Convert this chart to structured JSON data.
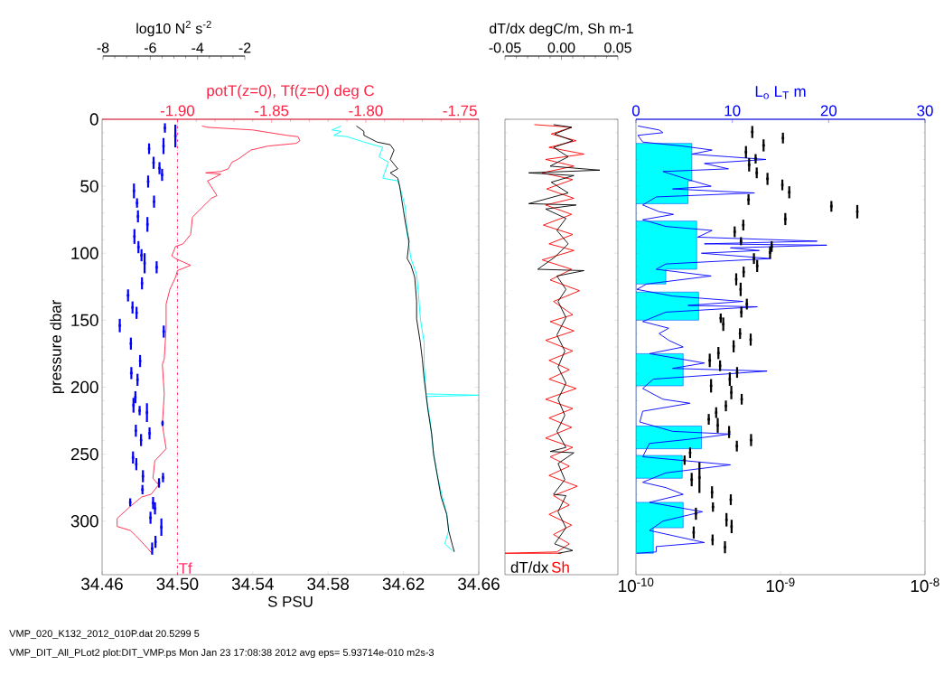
{
  "chart_data": [
    {
      "type": "line",
      "xlabel": "S PSU",
      "ylabel": "pressure dbar",
      "x2label": "potT(z=0), Tf(z=0) deg C",
      "xlim": [
        34.46,
        34.66
      ],
      "xticks": [
        34.46,
        {
          "value": 34.5,
          "label": "34.50"
        },
        34.54,
        34.58,
        34.62,
        34.66
      ],
      "x2lim": [
        -1.94,
        -1.74
      ],
      "x2ticks": [
        {
          "value": -1.9,
          "label": "-1.90"
        },
        -1.85,
        {
          "value": -1.8,
          "label": "-1.80"
        },
        -1.75
      ],
      "ylim": [
        340,
        0
      ],
      "yticks": [
        0,
        50,
        100,
        150,
        200,
        250,
        300
      ],
      "series": [
        {
          "color": "#000000",
          "x": [
            34.595,
            34.599,
            34.599,
            34.606,
            34.613,
            34.615,
            34.613,
            34.617,
            34.613,
            34.617,
            34.618,
            34.619,
            34.62,
            34.621,
            34.623,
            34.622,
            34.624,
            34.626,
            34.627,
            34.627,
            34.629,
            34.63,
            34.631,
            34.632,
            34.633,
            34.635,
            34.636,
            34.638,
            34.64,
            34.643,
            34.644,
            34.646,
            34.647
          ],
          "values": [
            5,
            9,
            12,
            17,
            19,
            23,
            30,
            37,
            40,
            44,
            50,
            59,
            68,
            77,
            91,
            104,
            109,
            118,
            136,
            149,
            167,
            179,
            194,
            205,
            217,
            235,
            250,
            266,
            282,
            295,
            307,
            318,
            323
          ]
        },
        {
          "color": "#00ffff",
          "x": [
            34.587,
            34.582,
            34.587,
            34.583,
            34.59,
            34.599,
            34.609,
            34.607,
            34.612,
            34.609,
            34.617,
            34.619,
            34.621,
            34.622,
            34.624,
            34.627,
            34.628,
            34.629,
            34.631,
            34.631,
            34.632,
            34.66,
            34.632,
            34.634,
            34.636,
            34.638,
            34.641,
            34.643,
            34.644,
            34.642,
            34.646
          ],
          "values": [
            5,
            8,
            9,
            12,
            13,
            17,
            21,
            28,
            32,
            44,
            46,
            55,
            66,
            86,
            104,
            116,
            131,
            149,
            167,
            183,
            205,
            206,
            207,
            223,
            250,
            266,
            284,
            295,
            307,
            317,
            322
          ]
        },
        {
          "color": "#ff2244",
          "axis": "x2",
          "x": [
            -1.887,
            -1.884,
            -1.86,
            -1.842,
            -1.836,
            -1.835,
            -1.837,
            -1.852,
            -1.861,
            -1.868,
            -1.871,
            -1.873,
            -1.877,
            -1.885,
            -1.877,
            -1.881,
            -1.884,
            -1.879,
            -1.882,
            -1.887,
            -1.892,
            -1.893,
            -1.897,
            -1.901,
            -1.903,
            -1.901,
            -1.893,
            -1.9,
            -1.901,
            -1.904,
            -1.906,
            -1.906,
            -1.907,
            -1.908,
            -1.907,
            -1.908,
            -1.906,
            -1.912,
            -1.913,
            -1.91,
            -1.914,
            -1.919,
            -1.925,
            -1.932,
            -1.932,
            -1.925,
            -1.922,
            -1.916,
            -1.913
          ],
          "values": [
            5,
            6,
            8,
            12,
            13,
            16,
            18,
            20,
            23,
            30,
            32,
            37,
            39,
            40,
            41,
            44,
            46,
            57,
            59,
            66,
            73,
            86,
            93,
            95,
            102,
            104,
            109,
            113,
            118,
            127,
            138,
            156,
            179,
            183,
            205,
            228,
            246,
            255,
            268,
            273,
            280,
            282,
            289,
            298,
            304,
            307,
            311,
            320,
            325
          ]
        }
      ],
      "ref_lines": [
        {
          "axis": "x2",
          "value": -1.9,
          "label": "Tf",
          "color": "#ff3366",
          "line_style": "dashdot"
        }
      ],
      "annotations": [
        "VMP_020_K132_2012_010P.dat  20.5299  5",
        "VMP_DIT_All_PLot2    plot:DIT_VMP.ps Mon Jan 23 17:08:38 2012  avg eps=  5.93714e-010 m2s-3"
      ]
    },
    {
      "type": "scatter",
      "xlabel": "log10 N$^{2}$ s$^{-2}$",
      "xlim": [
        -8,
        -2
      ],
      "xticks": [
        -8,
        -6,
        -4,
        -2
      ],
      "ylim": [
        340,
        0
      ],
      "yticks": [
        0,
        50,
        100,
        150,
        200,
        250,
        300
      ],
      "tick_labels": "x",
      "marker": "square",
      "series": [
        {
          "color": "#0000ff",
          "x": [
            -5.38,
            -4.94,
            -5.44,
            -6.05,
            -5.86,
            -5.5,
            -6.09,
            -5.61,
            -6.69,
            -6.56,
            -5.84,
            -6.12,
            -6.52,
            -6.67,
            -6.5,
            -6.37,
            -6.24,
            -5.73,
            -6.35,
            -6.94,
            -6.75,
            -6.58,
            -7.29,
            -5.43,
            -6.82,
            -6.43,
            -6.8,
            -6.54,
            -6.63,
            -6.71,
            -6.45,
            -6.14,
            -5.48,
            -6.61,
            -6.03,
            -6.39,
            -6.73,
            -6.59,
            -6.31,
            -5.46,
            -5.63,
            -6.33,
            -6.85,
            -5.88,
            -5.8,
            -5.99,
            -5.53,
            -5.78,
            -5.92
          ],
          "values": [
            6.5,
            12.5,
            20,
            22,
            32.5,
            41.5,
            46.5,
            36.5,
            53.5,
            62.5,
            61.5,
            78.5,
            72.5,
            87.5,
            95.5,
            101.5,
            107.5,
            110.5,
            122.5,
            131.5,
            140.5,
            144.5,
            154,
            158.5,
            167.5,
            180.5,
            189.5,
            194.5,
            207.5,
            213.5,
            217.5,
            219,
            227,
            232.5,
            234.5,
            239.5,
            252.5,
            257.5,
            266.5,
            267.5,
            271.5,
            276.5,
            286,
            286.5,
            290.5,
            297.5,
            304.5,
            315.5,
            320.5
          ],
          "errors": [
            [
              3,
              10
            ],
            [
              4,
              21
            ],
            [
              14,
              26
            ],
            [
              18,
              26
            ],
            [
              28,
              37
            ],
            [
              37,
              46
            ],
            [
              42,
              51
            ],
            [
              32,
              41
            ],
            [
              48,
              59
            ],
            [
              59,
              66
            ],
            [
              57,
              66
            ],
            [
              73,
              84
            ],
            [
              68,
              77
            ],
            [
              82,
              93
            ],
            [
              91,
              100
            ],
            [
              97,
              106
            ],
            [
              100,
              115
            ],
            [
              106,
              115
            ],
            [
              118,
              127
            ],
            [
              127,
              136
            ],
            [
              136,
              145
            ],
            [
              140,
              149
            ],
            [
              149,
              159
            ],
            [
              154,
              163
            ],
            [
              163,
              172
            ],
            [
              176,
              185
            ],
            [
              185,
              194
            ],
            [
              190,
              199
            ],
            [
              203,
              212
            ],
            [
              208,
              219
            ],
            [
              214,
              221
            ],
            [
              212,
              226
            ],
            [
              225,
              229
            ],
            [
              228,
              237
            ],
            [
              230,
              239
            ],
            [
              235,
              244
            ],
            [
              248,
              257
            ],
            [
              253,
              262
            ],
            [
              262,
              271
            ],
            [
              264,
              271
            ],
            [
              268,
              275
            ],
            [
              273,
              280
            ],
            [
              283,
              289
            ],
            [
              282,
              291
            ],
            [
              286,
              295
            ],
            [
              293,
              302
            ],
            [
              298,
              311
            ],
            [
              311,
              320
            ],
            [
              316,
              325
            ]
          ]
        }
      ]
    },
    {
      "type": "line",
      "xlabel": "dT/dx degC/m, Sh m-1",
      "xlim": [
        -0.05,
        0.05
      ],
      "xticks": [
        -0.05,
        {
          "value": 0,
          "label": "0.00"
        },
        0.05
      ],
      "ylim": [
        340,
        0
      ],
      "yticks": [
        0,
        50,
        100,
        150,
        200,
        250,
        300
      ],
      "tick_labels": "x",
      "series": [
        {
          "name": "dT/dx",
          "color": "#000000",
          "x": [
            -0.007,
            0.009,
            -0.006,
            0.01,
            -0.007,
            0.006,
            -0.01,
            0.034,
            -0.029,
            0.011,
            -0.009,
            0.006,
            -0.029,
            0.013,
            -0.014,
            0.004,
            -0.004,
            0.006,
            -0.006,
            -0.021,
            0.02,
            -0.004,
            0.004,
            -0.003,
            0.004,
            -0.004,
            0.003,
            -0.003,
            0.004,
            -0.003,
            0.003,
            -0.004,
            0.004,
            -0.01,
            0.011,
            -0.003,
            0.003,
            -0.007,
            0.004,
            -0.003,
            0.004,
            -0.006,
            0.01,
            -0.003
          ],
          "values": [
            4,
            6,
            11,
            16,
            21,
            28,
            35,
            38,
            40,
            42,
            47,
            55,
            63,
            64,
            67,
            74,
            83,
            93,
            103,
            112,
            113,
            117,
            127,
            136,
            148,
            161,
            173,
            185,
            197,
            209,
            221,
            233,
            245,
            248,
            249,
            257,
            269,
            280,
            281,
            293,
            305,
            317,
            322,
            324
          ]
        },
        {
          "name": "Sh",
          "color": "#ff0000",
          "x": [
            -0.024,
            0.009,
            -0.009,
            0.013,
            -0.011,
            0.02,
            -0.014,
            0.011,
            -0.017,
            0.01,
            -0.013,
            0.011,
            -0.014,
            0.009,
            -0.016,
            0.01,
            -0.011,
            0.011,
            -0.017,
            0.009,
            -0.01,
            0.016,
            -0.007,
            0.01,
            -0.01,
            0.011,
            -0.014,
            0.01,
            -0.011,
            0.007,
            -0.011,
            0.013,
            -0.014,
            0.01,
            -0.011,
            0.009,
            -0.014,
            0.01,
            -0.01,
            0.007,
            -0.011,
            0.014,
            -0.007,
            0.007,
            -0.011,
            0.009,
            -0.007,
            0.007,
            -0.004,
            -0.05,
            0.0
          ],
          "values": [
            4,
            6,
            11,
            16,
            21,
            26,
            30,
            35,
            40,
            45,
            52,
            59,
            64,
            71,
            79,
            86,
            93,
            98,
            105,
            112,
            120,
            128,
            136,
            146,
            151,
            158,
            165,
            173,
            180,
            187,
            194,
            201,
            209,
            216,
            223,
            230,
            238,
            245,
            252,
            259,
            266,
            274,
            281,
            288,
            295,
            303,
            310,
            317,
            323,
            324,
            324
          ]
        }
      ]
    },
    {
      "type": "line",
      "x2label": "L$_{o}$  L$_{T}$ m",
      "log": "x",
      "xlim": [
        1e-10,
        1e-08
      ],
      "xticks": [
        {
          "value": 1e-10,
          "label": "10$^{-10}$"
        },
        {
          "value": 1e-09,
          "label": "10$^{-9}$"
        },
        {
          "value": 1e-08,
          "label": "10$^{-8}$"
        }
      ],
      "x2lim": [
        0,
        30
      ],
      "x2ticks": [
        0,
        10,
        20,
        30
      ],
      "ylim": [
        340,
        0
      ],
      "yticks": [
        0,
        50,
        100,
        150,
        200,
        250,
        300
      ],
      "tick_labels": "x",
      "series": [
        {
          "type": "scatter",
          "marker": "square",
          "color": "#000000",
          "x": [
            6.38e-10,
            1.04e-09,
            7.64e-10,
            5.77e-10,
            6.73e-10,
            6.07e-10,
            6.85e-10,
            8.13e-10,
            1.03e-09,
            1.15e-09,
            6.01e-10,
            2.25e-09,
            3.4e-09,
            1.08e-09,
            5.53e-10,
            4.82e-10,
            5.33e-10,
            8.69e-10,
            8.47e-10,
            6.55e-10,
            6.9e-10,
            4.94e-10,
            5.56e-10,
            5.3e-10,
            5.85e-10,
            5.36e-10,
            3.86e-10,
            4.02e-10,
            5.25e-10,
            6.22e-10,
            4.74e-10,
            3.72e-10,
            3.24e-10,
            3.82e-10,
            5.01e-10,
            3.31e-10,
            4.46e-10,
            4.57e-10,
            5.39e-10,
            4.19e-10,
            3.59e-10,
            3.19e-10,
            3.68e-10,
            4.41e-10,
            6.26e-10,
            4.99e-10,
            2.37e-10,
            2.17e-10,
            2.75e-10,
            2.43e-10,
            3.36e-10,
            4.53e-10,
            3.41e-10,
            2.6e-10,
            4.23e-10,
            4.59e-10,
            2.51e-10,
            3.39e-10,
            4.13e-10
          ],
          "values": [
            9.5,
            14,
            19.5,
            24.5,
            29.5,
            34,
            40,
            44.5,
            49,
            54.5,
            60,
            65,
            69,
            74.5,
            79,
            84,
            91,
            95,
            99.5,
            104,
            109.5,
            119.5,
            114,
            127,
            138,
            144,
            148.5,
            153,
            160,
            164.5,
            169.5,
            174.5,
            180,
            184,
            189,
            199,
            194,
            204,
            209,
            214,
            219,
            224,
            228.5,
            233.5,
            239.5,
            244,
            249,
            254.5,
            267.5,
            269,
            278.5,
            284,
            289.5,
            294.5,
            299,
            304,
            308.5,
            314,
            319.5
          ],
          "errors": [
            [
              5,
              14
            ],
            [
              10,
              18
            ],
            [
              15,
              24
            ],
            [
              20,
              29
            ],
            [
              26,
              33
            ],
            [
              29,
              39
            ],
            [
              36,
              44
            ],
            [
              40,
              49
            ],
            [
              45,
              53
            ],
            [
              50,
              59
            ],
            [
              56,
              64
            ],
            [
              61,
              69
            ],
            [
              64,
              74
            ],
            [
              70,
              79
            ],
            [
              75,
              83
            ],
            [
              80,
              88
            ],
            [
              88,
              94
            ],
            [
              91,
              99
            ],
            [
              95,
              104
            ],
            [
              100,
              108
            ],
            [
              105,
              114
            ],
            [
              115,
              124
            ],
            [
              110,
              118
            ],
            [
              122,
              132
            ],
            [
              134,
              142
            ],
            [
              140,
              148
            ],
            [
              145,
              152
            ],
            [
              148,
              158
            ],
            [
              156,
              164
            ],
            [
              160,
              169
            ],
            [
              165,
              174
            ],
            [
              170,
              179
            ],
            [
              175,
              185
            ],
            [
              180,
              188
            ],
            [
              185,
              193
            ],
            [
              194,
              204
            ],
            [
              189,
              199
            ],
            [
              199,
              209
            ],
            [
              205,
              213
            ],
            [
              210,
              218
            ],
            [
              215,
              223
            ],
            [
              220,
              228
            ],
            [
              223,
              234
            ],
            [
              229,
              238
            ],
            [
              235,
              244
            ],
            [
              240,
              248
            ],
            [
              245,
              253
            ],
            [
              251,
              258
            ],
            [
              256,
              279
            ],
            [
              264,
              274
            ],
            [
              274,
              283
            ],
            [
              280,
              288
            ],
            [
              286,
              293
            ],
            [
              290,
              299
            ],
            [
              294,
              304
            ],
            [
              299,
              309
            ],
            [
              304,
              313
            ],
            [
              310,
              318
            ],
            [
              315,
              324
            ]
          ]
        },
        {
          "color": "#0000ff",
          "axis": "x2",
          "x": [
            0.2,
            2.4,
            2.8,
            0.2,
            0.7,
            4.8,
            7.9,
            5.8,
            9.6,
            13.5,
            7.1,
            9.6,
            2.8,
            5.4,
            7.8,
            3.8,
            12.3,
            2.1,
            0.7,
            2.4,
            3.9,
            0.7,
            3.1,
            7.9,
            6.4,
            18.8,
            7.1,
            19.8,
            9.8,
            12.8,
            6.8,
            14.0,
            3.1,
            2.1,
            7.8,
            1.1,
            0.1,
            3.8,
            11.1,
            5.4,
            12.6,
            3.1,
            0.7,
            3.4,
            2.4,
            3.4,
            4.9,
            1.4,
            7.1,
            3.8,
            13.6,
            1.8,
            0.7,
            2.8,
            5.6,
            0.7,
            0.4,
            3.8,
            9.8,
            5.4,
            1.4,
            0.7,
            9.8,
            3.1,
            0.7,
            3.1,
            4.9,
            1.4,
            6.9,
            2.8,
            1.4,
            7.1,
            2.1,
            2.1,
            0.1
          ],
          "values": [
            5,
            8,
            10,
            12,
            17,
            20,
            23,
            26,
            28,
            30,
            33,
            37,
            39,
            45,
            50,
            52,
            55,
            58,
            64,
            69,
            71,
            75,
            80,
            83,
            88,
            91,
            93,
            94,
            96,
            98,
            100,
            104,
            108,
            112,
            117,
            123,
            127,
            132,
            136,
            139,
            140,
            144,
            151,
            156,
            160,
            165,
            170,
            175,
            182,
            186,
            188,
            194,
            201,
            209,
            212,
            218,
            226,
            233,
            235,
            239,
            242,
            252,
            258,
            264,
            271,
            275,
            280,
            286,
            293,
            300,
            307,
            316,
            319,
            323,
            324
          ]
        },
        {
          "type": "area",
          "color": "#00ffff",
          "axis": "x2",
          "x": [
            0,
            5.8,
            5.8,
            5.4,
            5.4,
            0,
            0,
            6.3,
            6.3,
            3.1,
            3.1,
            0,
            0,
            6.5,
            6.5,
            0,
            0,
            4.9,
            4.9,
            0,
            0,
            6.8,
            6.8,
            0,
            0,
            4.8,
            4.8,
            0,
            0,
            4.9,
            4.9,
            1.8,
            1.8,
            0
          ],
          "values": [
            18,
            18,
            46,
            46,
            63,
            63,
            76,
            76,
            112,
            112,
            123,
            123,
            129,
            129,
            150,
            150,
            175,
            175,
            199,
            199,
            229,
            229,
            246,
            246,
            251,
            251,
            268,
            268,
            286,
            286,
            305,
            305,
            324,
            324
          ]
        }
      ]
    }
  ]
}
